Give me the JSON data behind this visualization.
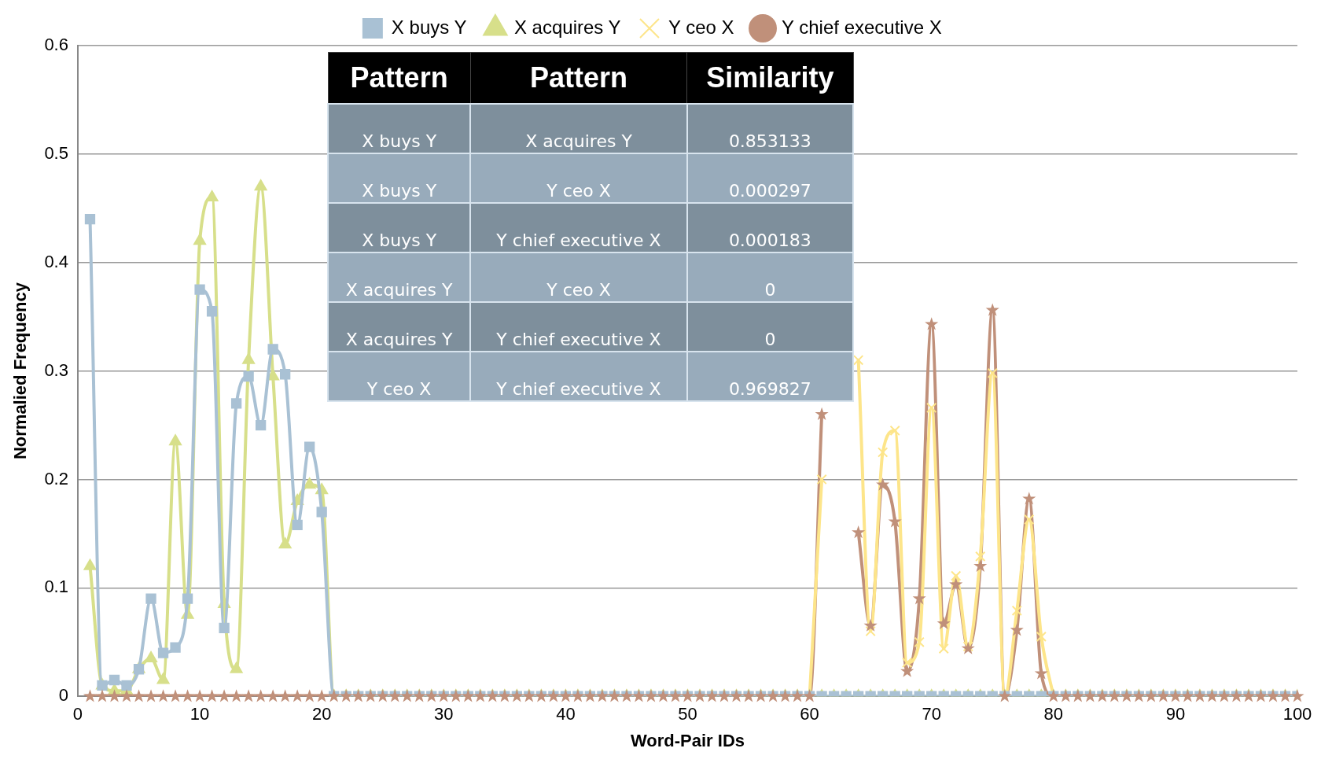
{
  "chart_data": {
    "type": "line",
    "xlabel": "Word-Pair IDs",
    "ylabel": "Normalied Frequency",
    "x": [
      1,
      2,
      3,
      4,
      5,
      6,
      7,
      8,
      9,
      10,
      11,
      12,
      13,
      14,
      15,
      16,
      17,
      18,
      19,
      20,
      21,
      22,
      23,
      24,
      25,
      26,
      27,
      28,
      29,
      30,
      31,
      32,
      33,
      34,
      35,
      36,
      37,
      38,
      39,
      40,
      41,
      42,
      43,
      44,
      45,
      46,
      47,
      48,
      49,
      50,
      51,
      52,
      53,
      54,
      55,
      56,
      57,
      58,
      59,
      60,
      61,
      62,
      63,
      64,
      65,
      66,
      67,
      68,
      69,
      70,
      71,
      72,
      73,
      74,
      75,
      76,
      77,
      78,
      79,
      80,
      81,
      82,
      83,
      84,
      85,
      86,
      87,
      88,
      89,
      90,
      91,
      92,
      93,
      94,
      95,
      96,
      97,
      98,
      99,
      100
    ],
    "series": [
      {
        "name": "X buys Y",
        "color": "#a9c1d4",
        "marker": "square",
        "values": [
          0.44,
          0.01,
          0.015,
          0.01,
          0.025,
          0.09,
          0.04,
          0.045,
          0.09,
          0.375,
          0.355,
          0.063,
          0.27,
          0.295,
          0.25,
          0.32,
          0.297,
          0.158,
          0.23,
          0.17,
          0,
          0,
          0,
          0,
          0,
          0,
          0,
          0,
          0,
          0,
          0,
          0,
          0,
          0,
          0,
          0,
          0,
          0,
          0,
          0,
          0,
          0,
          0,
          0,
          0,
          0,
          0,
          0,
          0,
          0,
          0,
          0,
          0,
          0,
          0,
          0,
          0,
          0,
          0,
          0,
          0,
          0,
          0,
          0,
          0,
          0,
          0,
          0,
          0,
          0,
          0,
          0,
          0,
          0,
          0,
          0,
          0,
          0,
          0,
          0,
          0,
          0,
          0,
          0,
          0,
          0,
          0,
          0,
          0,
          0,
          0,
          0,
          0,
          0,
          0,
          0,
          0,
          0,
          0,
          0
        ]
      },
      {
        "name": "X acquires Y",
        "color": "#d7df8a",
        "marker": "triangle",
        "values": [
          0.12,
          0.01,
          0.005,
          0.005,
          0.025,
          0.035,
          0.015,
          0.235,
          0.075,
          0.42,
          0.46,
          0.085,
          0.025,
          0.31,
          0.47,
          0.295,
          0.14,
          0.18,
          0.195,
          0.19,
          0,
          0,
          0,
          0,
          0,
          0,
          0,
          0,
          0,
          0,
          0,
          0,
          0,
          0,
          0,
          0,
          0,
          0,
          0,
          0,
          0,
          0,
          0,
          0,
          0,
          0,
          0,
          0,
          0,
          0,
          0,
          0,
          0,
          0,
          0,
          0,
          0,
          0,
          0,
          0,
          0,
          0,
          0,
          0,
          0,
          0,
          0,
          0,
          0,
          0,
          0,
          0,
          0,
          0,
          0,
          0,
          0,
          0,
          0,
          0,
          0,
          0,
          0,
          0,
          0,
          0,
          0,
          0,
          0,
          0,
          0,
          0,
          0,
          0,
          0,
          0,
          0,
          0,
          0,
          0
        ]
      },
      {
        "name": "Y ceo X",
        "color": "#fde58a",
        "marker": "cross",
        "values": [
          null,
          null,
          null,
          null,
          null,
          null,
          null,
          null,
          null,
          null,
          null,
          null,
          null,
          null,
          null,
          null,
          null,
          null,
          null,
          null,
          null,
          null,
          null,
          null,
          null,
          null,
          null,
          null,
          null,
          null,
          null,
          null,
          null,
          null,
          null,
          null,
          null,
          null,
          null,
          null,
          null,
          null,
          null,
          null,
          null,
          null,
          null,
          null,
          null,
          null,
          null,
          null,
          null,
          null,
          null,
          null,
          null,
          null,
          null,
          0,
          0.2,
          null,
          null,
          0.31,
          0.06,
          0.225,
          0.245,
          0.031,
          0.05,
          0.266,
          0.044,
          0.111,
          0.046,
          0.129,
          0.298,
          0,
          0.079,
          0.163,
          0.055,
          0,
          null,
          null,
          null,
          null,
          null,
          null,
          null,
          null,
          null,
          null,
          null,
          null,
          null,
          null,
          null,
          null,
          null,
          null,
          null,
          null
        ]
      },
      {
        "name": "Y chief executive X",
        "color": "#c0907a",
        "marker": "star",
        "values": [
          0,
          0,
          0,
          0,
          0,
          0,
          0,
          0,
          0,
          0,
          0,
          0,
          0,
          0,
          0,
          0,
          0,
          0,
          0,
          0,
          0,
          0,
          0,
          0,
          0,
          0,
          0,
          0,
          0,
          0,
          0,
          0,
          0,
          0,
          0,
          0,
          0,
          0,
          0,
          0,
          0,
          0,
          0,
          0,
          0,
          0,
          0,
          0,
          0,
          0,
          0,
          0,
          0,
          0,
          0,
          0,
          0,
          0,
          0,
          0,
          0.26,
          null,
          null,
          0.151,
          0.065,
          0.195,
          0.161,
          0.023,
          0.09,
          0.343,
          0.067,
          0.103,
          0.044,
          0.12,
          0.356,
          0,
          0.061,
          0.182,
          0.021,
          0,
          0,
          0,
          0,
          0,
          0,
          0,
          0,
          0,
          0,
          0,
          0,
          0,
          0,
          0,
          0,
          0,
          0,
          0,
          0,
          0
        ]
      }
    ],
    "xlim": [
      0,
      100
    ],
    "xticks": [
      0,
      10,
      20,
      30,
      40,
      50,
      60,
      70,
      80,
      90,
      100
    ],
    "ylim": [
      0,
      0.6
    ],
    "yticks": [
      0,
      0.1,
      0.2,
      0.3,
      0.4,
      0.5,
      0.6
    ],
    "grid": "y",
    "legend": "top",
    "line_style": "solid",
    "annotations": [
      "Pattern",
      "Pattern",
      "Similarity",
      "X buys Y",
      "X acquires Y",
      "0.853133",
      "X buys Y",
      "Y ceo X",
      "0.000297",
      "X buys Y",
      "Y chief executive X",
      "0.000183",
      "X acquires Y",
      "Y ceo X",
      "0",
      "X acquires Y",
      "Y chief executive X",
      "0",
      "Y ceo X",
      "Y chief executive X",
      "0.969827"
    ]
  }
}
